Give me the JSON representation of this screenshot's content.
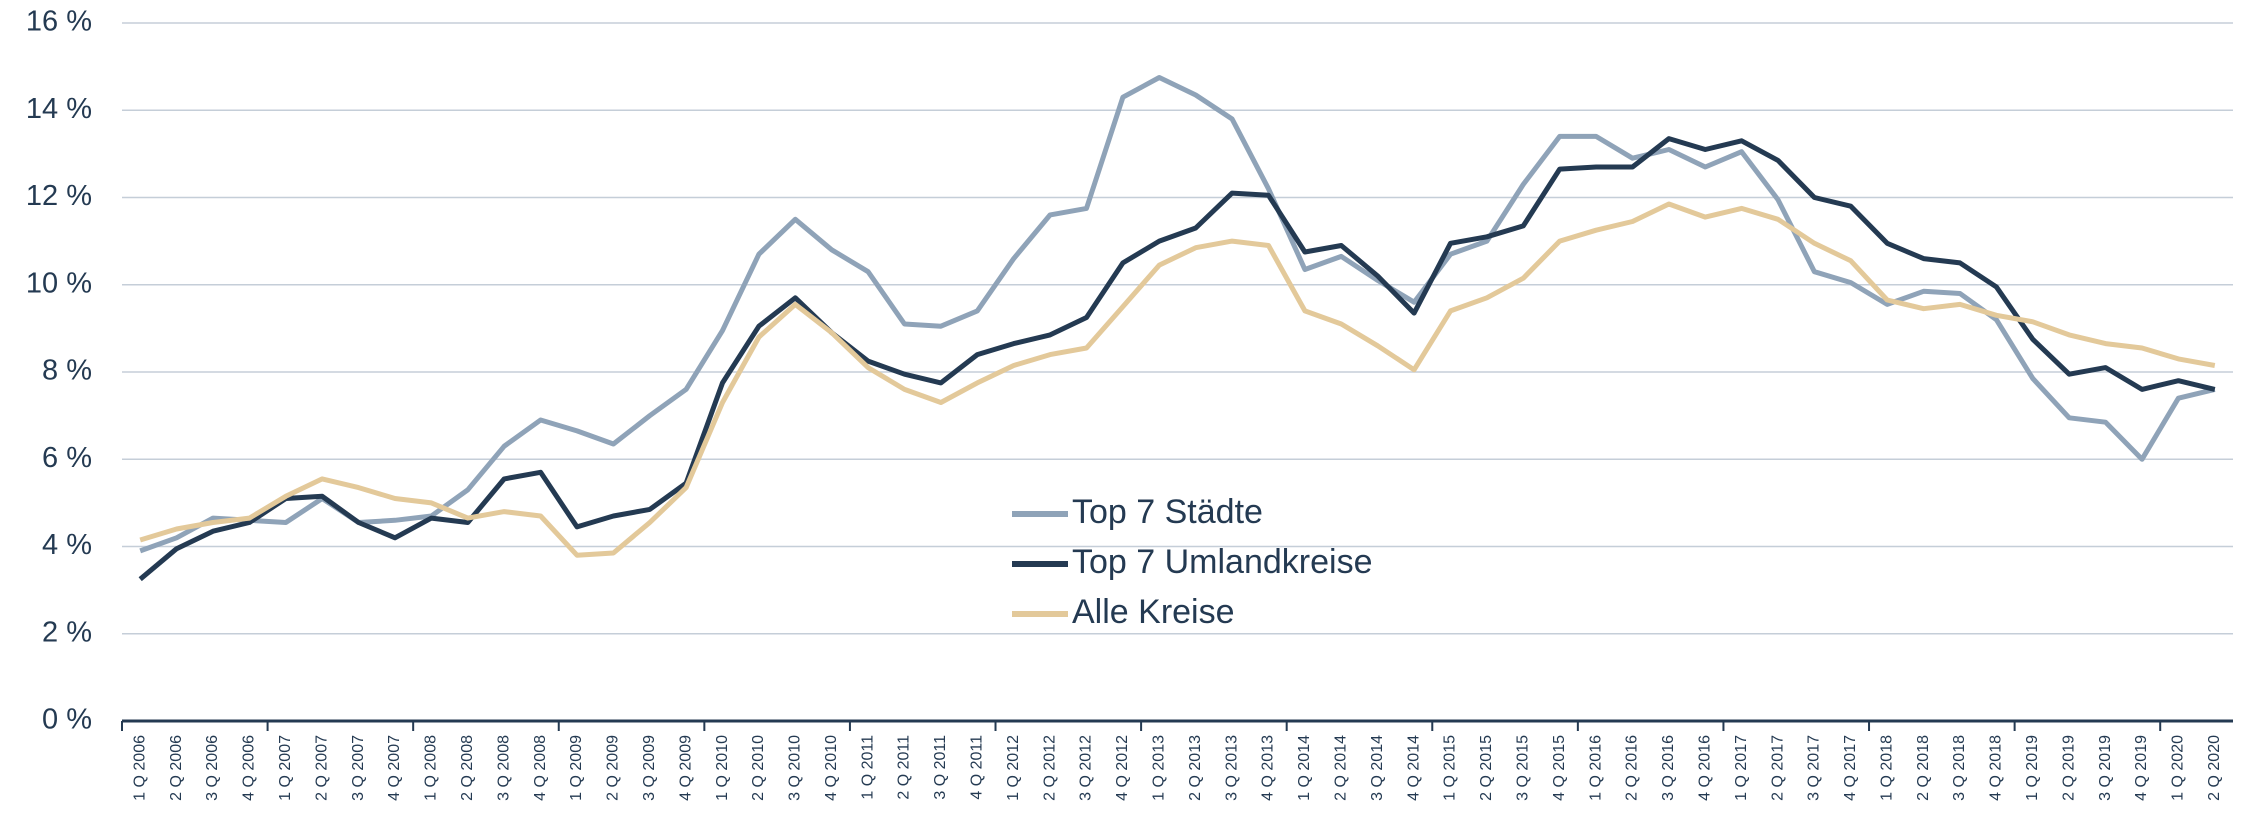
{
  "chart_data": {
    "type": "line",
    "categories": [
      "1 Q 2006",
      "2 Q 2006",
      "3 Q 2006",
      "4 Q 2006",
      "1 Q 2007",
      "2 Q 2007",
      "3 Q 2007",
      "4 Q 2007",
      "1 Q 2008",
      "2 Q 2008",
      "3 Q 2008",
      "4 Q 2008",
      "1 Q 2009",
      "2 Q 2009",
      "3 Q 2009",
      "4 Q 2009",
      "1 Q 2010",
      "2 Q 2010",
      "3 Q 2010",
      "4 Q 2010",
      "1 Q 2011",
      "2 Q 2011",
      "3 Q 2011",
      "4 Q 2011",
      "1 Q 2012",
      "2 Q 2012",
      "3 Q 2012",
      "4 Q 2012",
      "1 Q 2013",
      "2 Q 2013",
      "3 Q 2013",
      "4 Q 2013",
      "1 Q 2014",
      "2 Q 2014",
      "3 Q 2014",
      "4 Q 2014",
      "1 Q 2015",
      "2 Q 2015",
      "3 Q 2015",
      "4 Q 2015",
      "1 Q 2016",
      "2 Q 2016",
      "3 Q 2016",
      "4 Q 2016",
      "1 Q 2017",
      "2 Q 2017",
      "3 Q 2017",
      "4 Q 2017",
      "1 Q 2018",
      "2 Q 2018",
      "3 Q 2018",
      "4 Q 2018",
      "1 Q 2019",
      "2 Q 2019",
      "3 Q 2019",
      "4 Q 2019",
      "1 Q 2020",
      "2 Q 2020"
    ],
    "series": [
      {
        "name": "Top 7 Städte",
        "color": "#8fa3b8",
        "values": [
          3.9,
          4.2,
          4.65,
          4.6,
          4.55,
          5.1,
          4.55,
          4.6,
          4.7,
          5.3,
          6.3,
          6.9,
          6.65,
          6.35,
          7.0,
          7.6,
          8.95,
          10.7,
          11.5,
          10.8,
          10.3,
          9.1,
          9.05,
          9.4,
          10.6,
          11.6,
          11.75,
          14.3,
          14.75,
          14.35,
          13.8,
          12.2,
          10.35,
          10.65,
          10.1,
          9.6,
          10.7,
          11.0,
          12.3,
          13.4,
          13.4,
          12.9,
          13.1,
          12.7,
          13.05,
          11.95,
          10.3,
          10.05,
          9.55,
          9.85,
          9.8,
          9.2,
          7.85,
          6.95,
          6.85,
          6.0,
          7.4,
          7.6
        ]
      },
      {
        "name": "Top 7 Umlandkreise",
        "color": "#243a52",
        "values": [
          3.25,
          3.95,
          4.35,
          4.55,
          5.1,
          5.15,
          4.55,
          4.2,
          4.65,
          4.55,
          5.55,
          5.7,
          4.45,
          4.7,
          4.85,
          5.45,
          7.75,
          9.05,
          9.7,
          8.9,
          8.25,
          7.95,
          7.75,
          8.4,
          8.65,
          8.85,
          9.25,
          10.5,
          11.0,
          11.3,
          12.1,
          12.05,
          10.75,
          10.9,
          10.2,
          9.35,
          10.95,
          11.1,
          11.35,
          12.65,
          12.7,
          12.7,
          13.35,
          13.1,
          13.3,
          12.85,
          12.0,
          11.8,
          10.95,
          10.6,
          10.5,
          9.95,
          8.75,
          7.95,
          8.1,
          7.6,
          7.8,
          7.6
        ]
      },
      {
        "name": "Alle Kreise",
        "color": "#e3c99a",
        "values": [
          4.15,
          4.4,
          4.55,
          4.65,
          5.15,
          5.55,
          5.35,
          5.1,
          5.0,
          4.65,
          4.8,
          4.7,
          3.8,
          3.85,
          4.55,
          5.35,
          7.3,
          8.8,
          9.55,
          8.9,
          8.1,
          7.6,
          7.3,
          7.75,
          8.15,
          8.4,
          8.55,
          9.5,
          10.45,
          10.85,
          11.0,
          10.9,
          9.4,
          9.1,
          8.6,
          8.05,
          9.4,
          9.7,
          10.15,
          11.0,
          11.25,
          11.45,
          11.85,
          11.55,
          11.75,
          11.5,
          10.95,
          10.55,
          9.65,
          9.45,
          9.55,
          9.3,
          9.15,
          8.85,
          8.65,
          8.55,
          8.3,
          8.15
        ]
      }
    ],
    "ylim": [
      0,
      16
    ],
    "yticks": [
      {
        "value": 0,
        "label": "0 %"
      },
      {
        "value": 2,
        "label": "2 %"
      },
      {
        "value": 4,
        "label": "4 %"
      },
      {
        "value": 6,
        "label": "6 %"
      },
      {
        "value": 8,
        "label": "8 %"
      },
      {
        "value": 10,
        "label": "10 %"
      },
      {
        "value": 12,
        "label": "12 %"
      },
      {
        "value": 14,
        "label": "14 %"
      },
      {
        "value": 16,
        "label": "16 %"
      }
    ],
    "grid": true
  }
}
